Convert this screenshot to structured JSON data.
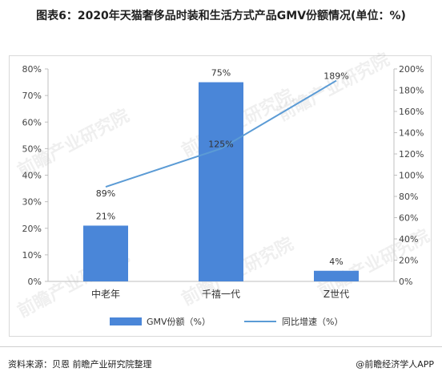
{
  "title": "图表6：2020年天猫奢侈品时装和生活方式产品GMV份额情况(单位：%)",
  "footer": {
    "source": "资料来源：贝恩 前瞻产业研究院整理",
    "brand": "@前瞻经济学人APP"
  },
  "watermark": "前瞻产业研究院",
  "colors": {
    "bar": "#4a86d8",
    "line": "#5b9bd5",
    "grid": "#d9d9d9",
    "axis": "#bfbfbf"
  },
  "chart_data": {
    "type": "bar",
    "title": "",
    "categories": [
      "中老年",
      "千禧一代",
      "Z世代"
    ],
    "series": [
      {
        "name": "GMV份额（%）",
        "type": "bar",
        "axis": "left",
        "values": [
          21,
          75,
          4
        ],
        "labels": [
          "21%",
          "75%",
          "4%"
        ]
      },
      {
        "name": "同比增速（%）",
        "type": "line",
        "axis": "right",
        "values": [
          89,
          125,
          189
        ],
        "labels": [
          "89%",
          "125%",
          "189%"
        ]
      }
    ],
    "y_left": {
      "min": 0,
      "max": 80,
      "step": 10,
      "ticks": [
        "0%",
        "10%",
        "20%",
        "30%",
        "40%",
        "50%",
        "60%",
        "70%",
        "80%"
      ]
    },
    "y_right": {
      "min": 0,
      "max": 200,
      "step": 20,
      "ticks": [
        "0%",
        "20%",
        "40%",
        "60%",
        "80%",
        "100%",
        "120%",
        "140%",
        "160%",
        "180%",
        "200%"
      ]
    },
    "grid": false,
    "legend": "bottom"
  }
}
